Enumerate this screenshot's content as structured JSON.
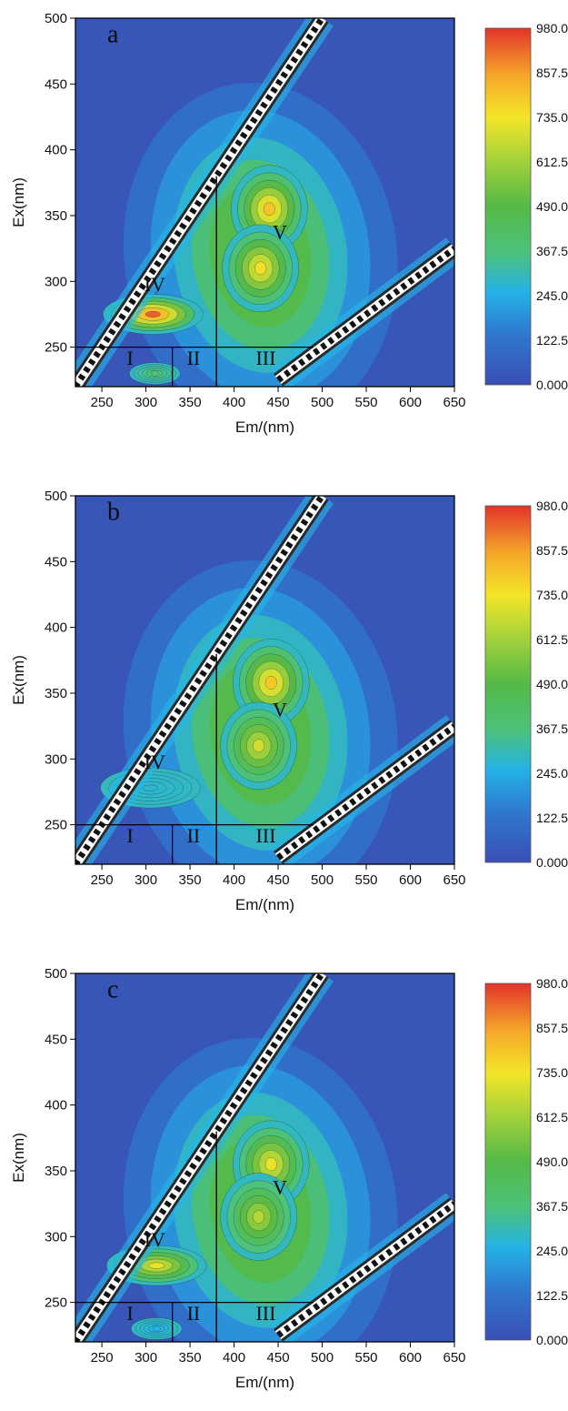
{
  "chart_data": [
    {
      "panel": "a",
      "type": "heatmap",
      "xlabel": "Em/(nm)",
      "ylabel": "Ex(nm)",
      "xlim": [
        220,
        650
      ],
      "ylim": [
        220,
        500
      ],
      "xticks": [
        "250",
        "300",
        "350",
        "400",
        "450",
        "500",
        "550",
        "600",
        "650"
      ],
      "yticks": [
        "250",
        "300",
        "350",
        "400",
        "450",
        "500"
      ],
      "colorbar": {
        "ticks": [
          "980.0",
          "857.5",
          "735.0",
          "612.5",
          "490.0",
          "367.5",
          "245.0",
          "122.5",
          "0.000"
        ],
        "min": 0,
        "max": 980
      },
      "regions": [
        "I",
        "II",
        "III",
        "IV",
        "V"
      ],
      "peaks": [
        {
          "label": "IV",
          "em": 308,
          "ex": 275,
          "intensity": 930
        },
        {
          "label": "V",
          "em": 440,
          "ex": 355,
          "intensity": 800
        },
        {
          "label": "V",
          "em": 430,
          "ex": 310,
          "intensity": 750
        },
        {
          "label": "I",
          "em": 310,
          "ex": 230,
          "intensity": 380
        }
      ]
    },
    {
      "panel": "b",
      "type": "heatmap",
      "xlabel": "Em/(nm)",
      "ylabel": "Ex(nm)",
      "xlim": [
        220,
        650
      ],
      "ylim": [
        220,
        500
      ],
      "xticks": [
        "250",
        "300",
        "350",
        "400",
        "450",
        "500",
        "550",
        "600",
        "650"
      ],
      "yticks": [
        "250",
        "300",
        "350",
        "400",
        "450",
        "500"
      ],
      "colorbar": {
        "ticks": [
          "980.0",
          "857.5",
          "735.0",
          "612.5",
          "490.0",
          "367.5",
          "245.0",
          "122.5",
          "0.000"
        ],
        "min": 0,
        "max": 980
      },
      "regions": [
        "I",
        "II",
        "III",
        "IV",
        "V"
      ],
      "peaks": [
        {
          "label": "IV",
          "em": 305,
          "ex": 278,
          "intensity": 280
        },
        {
          "label": "V",
          "em": 442,
          "ex": 358,
          "intensity": 790
        },
        {
          "label": "V",
          "em": 428,
          "ex": 310,
          "intensity": 680
        }
      ]
    },
    {
      "panel": "c",
      "type": "heatmap",
      "xlabel": "Em/(nm)",
      "ylabel": "Ex(nm)",
      "xlim": [
        220,
        650
      ],
      "ylim": [
        220,
        500
      ],
      "xticks": [
        "250",
        "300",
        "350",
        "400",
        "450",
        "500",
        "550",
        "600",
        "650"
      ],
      "yticks": [
        "250",
        "300",
        "350",
        "400",
        "450",
        "500"
      ],
      "colorbar": {
        "ticks": [
          "980.0",
          "857.5",
          "735.0",
          "612.5",
          "490.0",
          "367.5",
          "245.0",
          "122.5",
          "0.000"
        ],
        "min": 0,
        "max": 980
      },
      "regions": [
        "I",
        "II",
        "III",
        "IV",
        "V"
      ],
      "peaks": [
        {
          "label": "IV",
          "em": 312,
          "ex": 278,
          "intensity": 720
        },
        {
          "label": "V",
          "em": 442,
          "ex": 355,
          "intensity": 720
        },
        {
          "label": "V",
          "em": 428,
          "ex": 315,
          "intensity": 640
        },
        {
          "label": "I",
          "em": 312,
          "ex": 230,
          "intensity": 260
        }
      ]
    }
  ]
}
